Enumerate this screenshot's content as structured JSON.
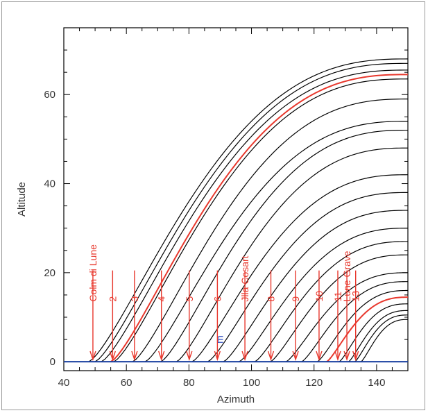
{
  "chart_data": {
    "type": "line",
    "title": "",
    "xlabel": "Azimuth",
    "ylabel": "Altitude",
    "xlim": [
      40,
      150
    ],
    "ylim": [
      -2,
      75
    ],
    "xticks": [
      40,
      60,
      80,
      100,
      120,
      140
    ],
    "yticks": [
      0,
      20,
      40,
      60
    ],
    "x_tick_labels": [
      "40",
      "60",
      "80",
      "100",
      "120",
      "140"
    ],
    "y_tick_labels": [
      "0",
      "20",
      "40",
      "60"
    ],
    "grid": false,
    "colors": {
      "black_curves": "#000000",
      "highlight_curves": "#e8372c",
      "horizon": "#1a3fa0",
      "annotations": "#e8372c",
      "marker": "#3050c0"
    },
    "horizon": {
      "y": 0
    },
    "curves": [
      {
        "start_az": 48,
        "start_alt": 0,
        "end_az": 150,
        "end_alt": 68,
        "color": "black"
      },
      {
        "start_az": 50,
        "start_alt": 0,
        "end_az": 150,
        "end_alt": 67,
        "color": "black"
      },
      {
        "start_az": 52,
        "start_alt": 0,
        "end_az": 150,
        "end_alt": 65.5,
        "color": "black"
      },
      {
        "start_az": 55,
        "start_alt": 0,
        "end_az": 150,
        "end_alt": 64.5,
        "color": "red"
      },
      {
        "start_az": 56,
        "start_alt": 0,
        "end_az": 150,
        "end_alt": 63.5,
        "color": "black"
      },
      {
        "start_az": 62,
        "start_alt": 0,
        "end_az": 150,
        "end_alt": 59,
        "color": "black"
      },
      {
        "start_az": 66,
        "start_alt": 0,
        "end_az": 150,
        "end_alt": 54,
        "color": "black"
      },
      {
        "start_az": 71,
        "start_alt": 0,
        "end_az": 150,
        "end_alt": 52,
        "color": "black"
      },
      {
        "start_az": 76,
        "start_alt": 0,
        "end_az": 150,
        "end_alt": 48,
        "color": "black"
      },
      {
        "start_az": 81,
        "start_alt": 0,
        "end_az": 150,
        "end_alt": 42,
        "color": "black"
      },
      {
        "start_az": 86,
        "start_alt": 0,
        "end_az": 150,
        "end_alt": 38,
        "color": "black"
      },
      {
        "start_az": 91,
        "start_alt": 0,
        "end_az": 150,
        "end_alt": 34,
        "color": "black"
      },
      {
        "start_az": 96,
        "start_alt": 0,
        "end_az": 150,
        "end_alt": 30,
        "color": "black"
      },
      {
        "start_az": 101,
        "start_alt": 0,
        "end_az": 150,
        "end_alt": 27,
        "color": "black"
      },
      {
        "start_az": 106,
        "start_alt": 0,
        "end_az": 150,
        "end_alt": 24,
        "color": "black"
      },
      {
        "start_az": 111,
        "start_alt": 0,
        "end_az": 150,
        "end_alt": 20,
        "color": "black"
      },
      {
        "start_az": 116,
        "start_alt": 0,
        "end_az": 150,
        "end_alt": 18,
        "color": "black"
      },
      {
        "start_az": 121,
        "start_alt": 0,
        "end_az": 150,
        "end_alt": 16,
        "color": "black"
      },
      {
        "start_az": 124,
        "start_alt": 0,
        "end_az": 150,
        "end_alt": 14.5,
        "color": "red"
      },
      {
        "start_az": 128,
        "start_alt": 0,
        "end_az": 150,
        "end_alt": 13,
        "color": "black"
      },
      {
        "start_az": 131,
        "start_alt": 0,
        "end_az": 150,
        "end_alt": 11.5,
        "color": "black"
      },
      {
        "start_az": 133,
        "start_alt": 0,
        "end_az": 150,
        "end_alt": 10.5,
        "color": "black"
      },
      {
        "start_az": 135,
        "start_alt": 0,
        "end_az": 150,
        "end_alt": 9.5,
        "color": "black"
      }
    ],
    "annotations": [
      {
        "text": "Colm di Lune",
        "az": 49.3
      },
      {
        "text": "2",
        "az": 55.6
      },
      {
        "text": "3",
        "az": 62.6
      },
      {
        "text": "4",
        "az": 71.2
      },
      {
        "text": "5",
        "az": 80.1
      },
      {
        "text": "6",
        "az": 89.1
      },
      {
        "text": "Jlla Cosart",
        "az": 97.9
      },
      {
        "text": "8",
        "az": 106.2
      },
      {
        "text": "9",
        "az": 114.1
      },
      {
        "text": "10",
        "az": 121.6
      },
      {
        "text": "11",
        "az": 127.6
      },
      {
        "text": "Lune Grave",
        "az": 130.5
      },
      {
        "text": "13",
        "az": 133.3
      }
    ],
    "marker": {
      "text": "m",
      "az": 90,
      "alt": 5
    }
  }
}
